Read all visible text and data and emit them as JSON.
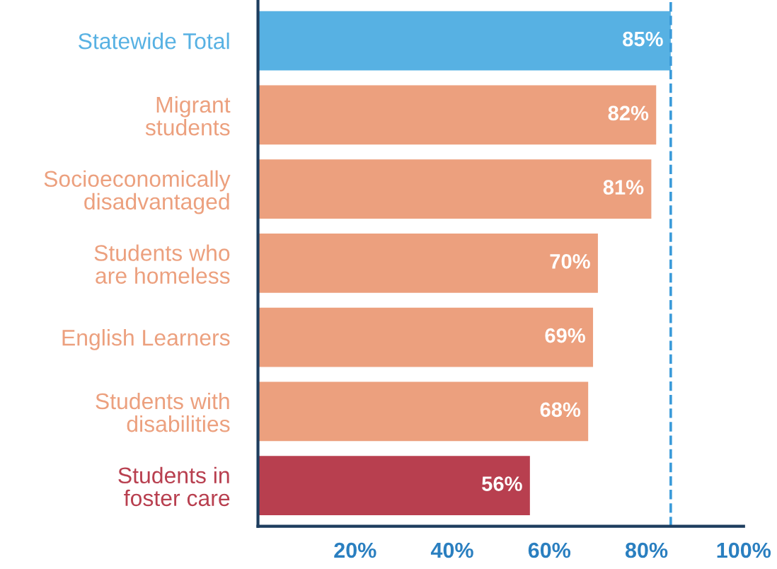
{
  "chart_data": {
    "type": "bar",
    "orientation": "horizontal",
    "categories": [
      "Statewide Total",
      "Migrant\nstudents",
      "Socioeconomically\ndisadvantaged",
      "Students who\nare homeless",
      "English Learners",
      "Students with\ndisabilities",
      "Students in\nfoster care"
    ],
    "values": [
      85,
      82,
      81,
      70,
      69,
      68,
      56
    ],
    "colors": [
      "#57b1e3",
      "#eca07e",
      "#eca07e",
      "#eca07e",
      "#eca07e",
      "#eca07e",
      "#b83f4f"
    ],
    "value_labels": [
      "85%",
      "82%",
      "81%",
      "70%",
      "69%",
      "68%",
      "56%"
    ],
    "xlim": [
      0,
      100
    ],
    "xticks": [
      {
        "value": 20,
        "label": "20%"
      },
      {
        "value": 40,
        "label": "40%"
      },
      {
        "value": 60,
        "label": "60%"
      },
      {
        "value": 80,
        "label": "80%"
      },
      {
        "value": 100,
        "label": "100%"
      }
    ],
    "ref_lines": [
      {
        "axis": "x",
        "value": 85,
        "color": "#3a9ad9",
        "line_style": "dashed"
      }
    ],
    "grid": false,
    "legend": false
  }
}
